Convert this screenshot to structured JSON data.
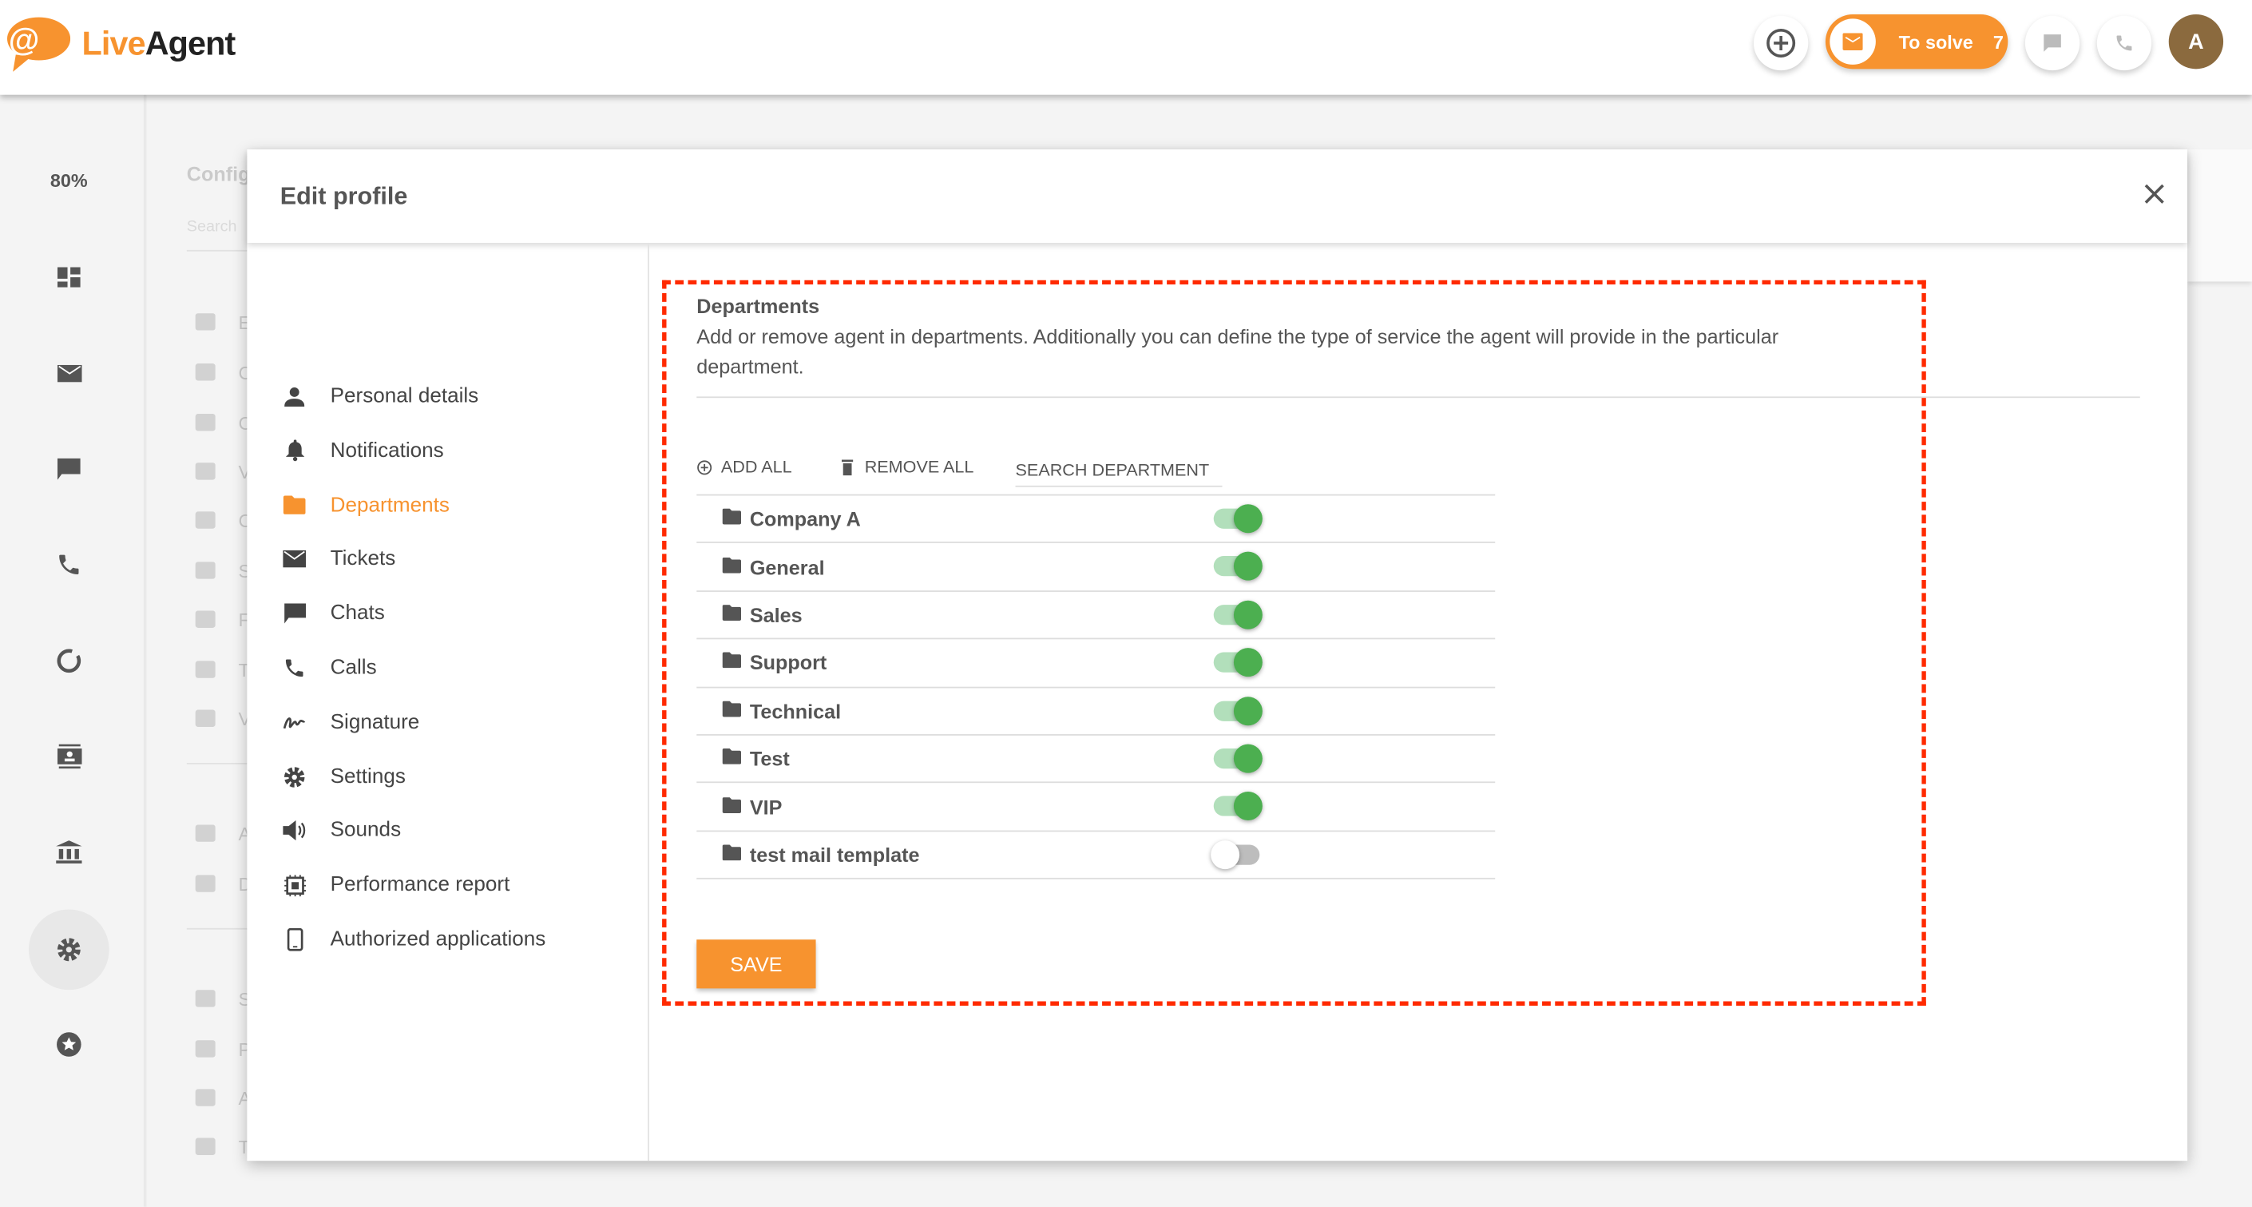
{
  "header": {
    "logo": {
      "live": "Live",
      "agent": "Agent"
    },
    "to_solve_label": "To solve",
    "to_solve_count": "7",
    "avatar_initial": "A"
  },
  "colors": {
    "accent": "#f7932f",
    "toggle_on": "#4caf50",
    "toggle_track_on": "#b2dfbb",
    "highlight": "#ff2a00",
    "avatar": "#8b6a3e"
  },
  "rail": {
    "zoom_level": "80%",
    "items": [
      "dashboard-icon",
      "mail-icon",
      "chat-icon",
      "phone-icon",
      "reports-icon",
      "contacts-icon",
      "knowledgebase-icon",
      "settings-icon",
      "plugins-icon"
    ],
    "active": "settings-icon"
  },
  "config_panel": {
    "title": "Config",
    "search_placeholder": "Search",
    "items": [
      {
        "icon": "at-icon",
        "label": "E"
      },
      {
        "icon": "form-icon",
        "label": "C"
      },
      {
        "icon": "chat-icon",
        "label": "C"
      },
      {
        "icon": "video-icon",
        "label": "V"
      },
      {
        "icon": "phone-icon",
        "label": "C"
      },
      {
        "icon": "slack-icon",
        "label": "S"
      },
      {
        "icon": "facebook-icon",
        "label": "F"
      },
      {
        "icon": "twitter-icon",
        "label": "T"
      },
      {
        "icon": "viber-icon",
        "label": "V"
      },
      {
        "icon": "agents-icon",
        "label": "A"
      },
      {
        "icon": "folder-icon",
        "label": "D"
      },
      {
        "icon": "gear-icon",
        "label": "S"
      },
      {
        "icon": "shield-icon",
        "label": "P"
      },
      {
        "icon": "sync-icon",
        "label": "A"
      },
      {
        "icon": "wrench-icon",
        "label": "T"
      }
    ]
  },
  "modal": {
    "title": "Edit profile",
    "nav": [
      {
        "label": "Personal details",
        "icon": "person-icon"
      },
      {
        "label": "Notifications",
        "icon": "bell-icon"
      },
      {
        "label": "Departments",
        "icon": "folder-icon",
        "active": true
      },
      {
        "label": "Tickets",
        "icon": "mail-icon"
      },
      {
        "label": "Chats",
        "icon": "chat-icon"
      },
      {
        "label": "Calls",
        "icon": "phone-icon"
      },
      {
        "label": "Signature",
        "icon": "signature-icon"
      },
      {
        "label": "Settings",
        "icon": "gear-icon"
      },
      {
        "label": "Sounds",
        "icon": "speaker-icon"
      },
      {
        "label": "Performance report",
        "icon": "report-icon"
      },
      {
        "label": "Authorized applications",
        "icon": "phone-device-icon"
      }
    ],
    "departments": {
      "title": "Departments",
      "description": "Add or remove agent in departments. Additionally you can define the type of service the agent will provide in the particular department.",
      "add_all": "ADD ALL",
      "remove_all": "REMOVE ALL",
      "search_placeholder": "SEARCH DEPARTMENT",
      "rows": [
        {
          "name": "Company A",
          "enabled": true
        },
        {
          "name": "General",
          "enabled": true
        },
        {
          "name": "Sales",
          "enabled": true
        },
        {
          "name": "Support",
          "enabled": true
        },
        {
          "name": "Technical",
          "enabled": true
        },
        {
          "name": "Test",
          "enabled": true
        },
        {
          "name": "VIP",
          "enabled": true
        },
        {
          "name": "test mail template",
          "enabled": false
        }
      ],
      "save_label": "SAVE"
    }
  }
}
